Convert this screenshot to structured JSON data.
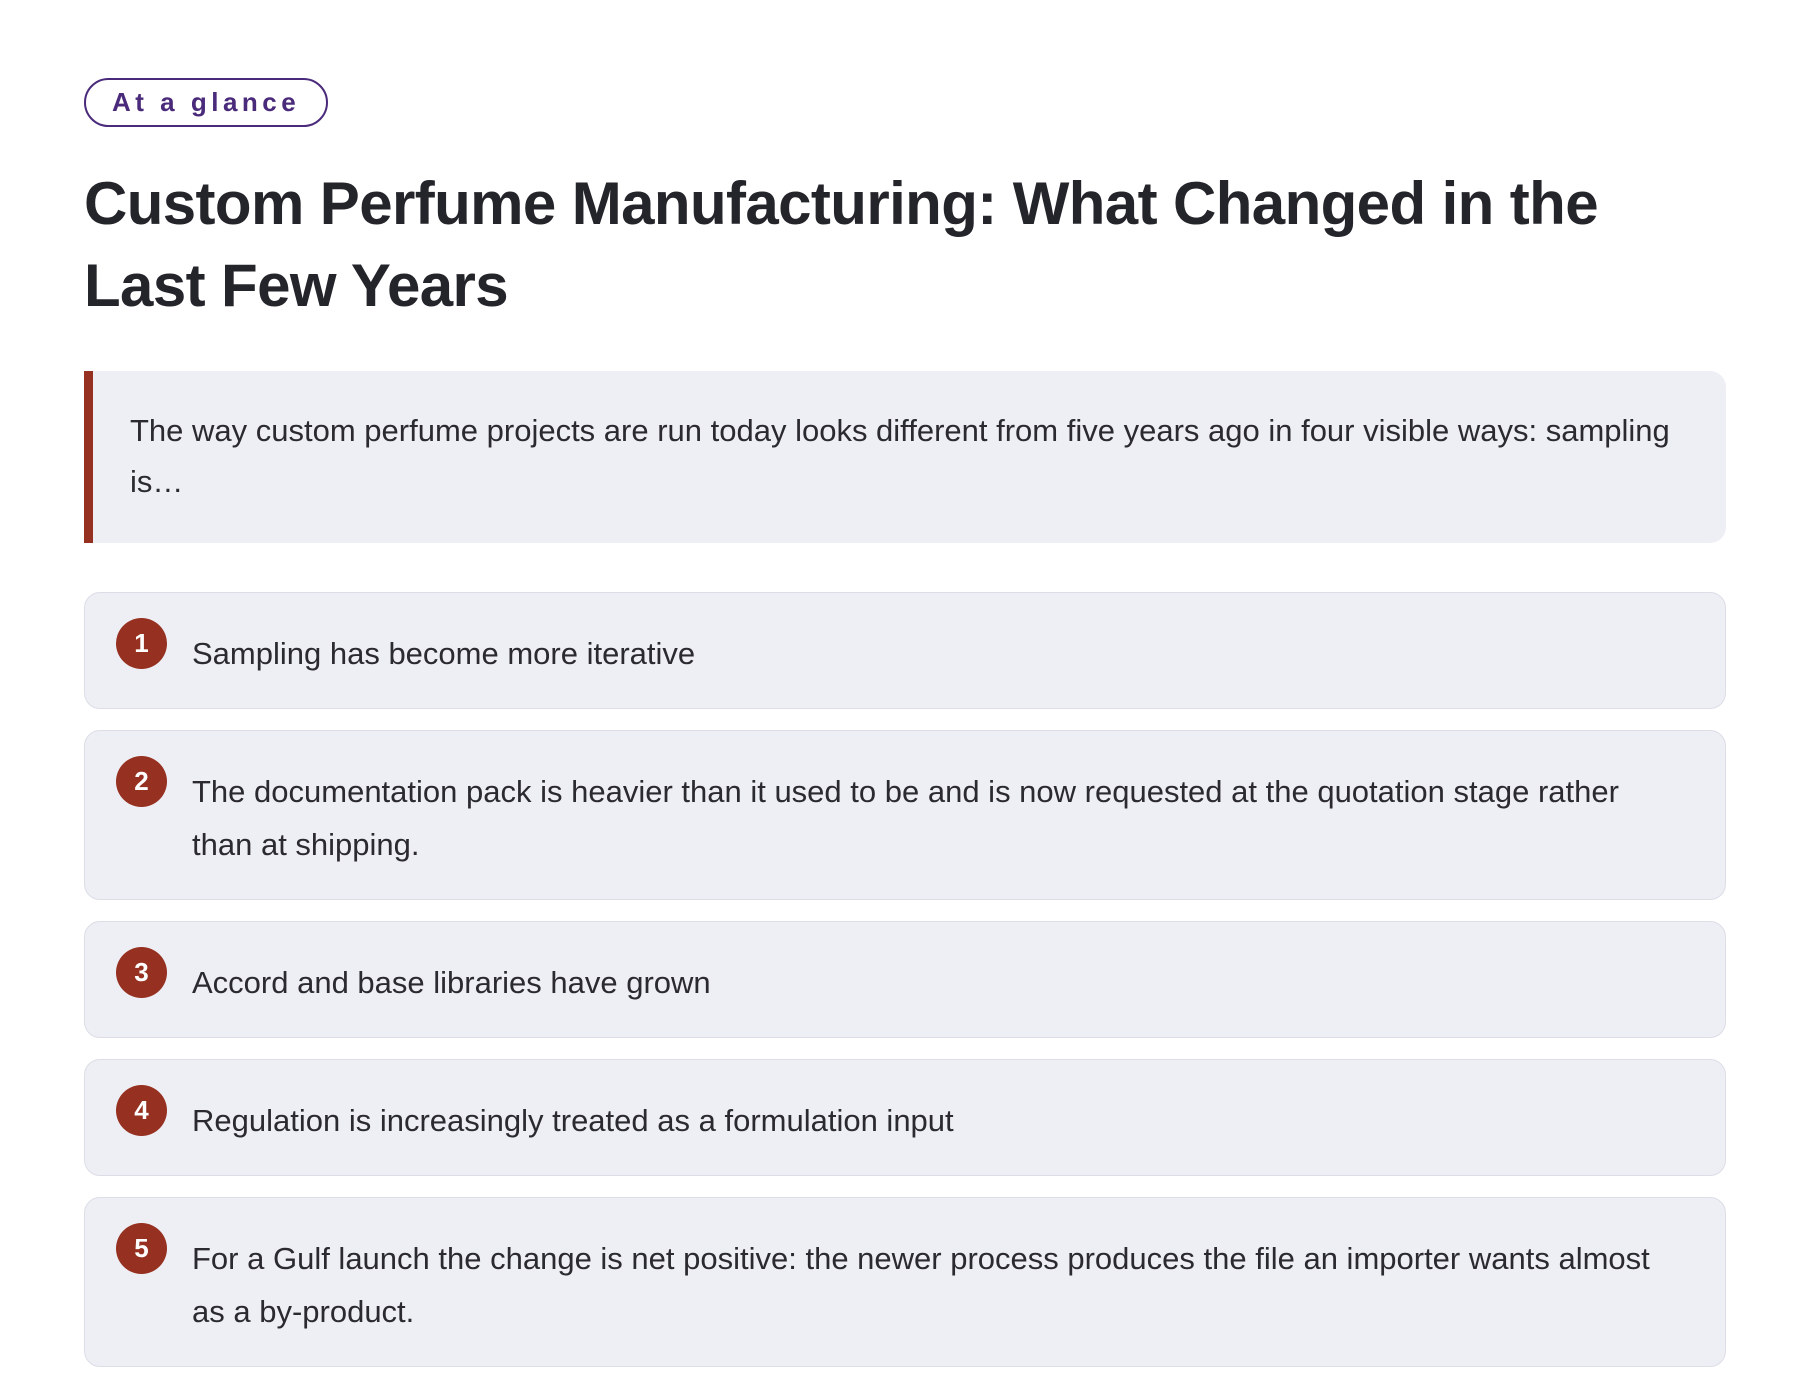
{
  "badge_label": "At a glance",
  "title": "Custom Perfume Manufacturing: What Changed in the Last Few Years",
  "summary": "The way custom perfume projects are run today looks different from five years ago in four visible ways: sampling is…",
  "colors": {
    "accent": "#963020",
    "badge_outline": "#4a2a7a",
    "card_background": "#eeeff5"
  },
  "points": [
    {
      "number": "1",
      "text": "Sampling has become more iterative"
    },
    {
      "number": "2",
      "text": "The documentation pack is heavier than it used to be and is now requested at the quotation stage rather than at shipping."
    },
    {
      "number": "3",
      "text": "Accord and base libraries have grown"
    },
    {
      "number": "4",
      "text": "Regulation is increasingly treated as a formulation input"
    },
    {
      "number": "5",
      "text": "For a Gulf launch the change is net positive: the newer process produces the file an importer wants almost as a by-product."
    }
  ]
}
